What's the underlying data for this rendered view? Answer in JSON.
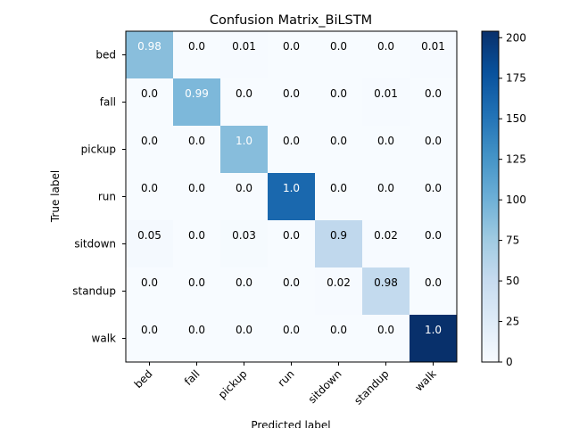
{
  "chart_data": {
    "type": "heatmap",
    "title": "Confusion Matrix_BiLSTM",
    "xlabel": "Predicted label",
    "ylabel": "True label",
    "x_categories": [
      "bed",
      "fall",
      "pickup",
      "run",
      "sitdown",
      "standup",
      "walk"
    ],
    "y_categories": [
      "bed",
      "fall",
      "pickup",
      "run",
      "sitdown",
      "standup",
      "walk"
    ],
    "cell_labels": [
      [
        "0.98",
        "0.0",
        "0.01",
        "0.0",
        "0.0",
        "0.0",
        "0.01"
      ],
      [
        "0.0",
        "0.99",
        "0.0",
        "0.0",
        "0.0",
        "0.01",
        "0.0"
      ],
      [
        "0.0",
        "0.0",
        "1.0",
        "0.0",
        "0.0",
        "0.0",
        "0.0"
      ],
      [
        "0.0",
        "0.0",
        "0.0",
        "1.0",
        "0.0",
        "0.0",
        "0.0"
      ],
      [
        "0.05",
        "0.0",
        "0.03",
        "0.0",
        "0.9",
        "0.02",
        "0.0"
      ],
      [
        "0.0",
        "0.0",
        "0.0",
        "0.0",
        "0.02",
        "0.98",
        "0.0"
      ],
      [
        "0.0",
        "0.0",
        "0.0",
        "0.0",
        "0.0",
        "0.0",
        "1.0"
      ]
    ],
    "counts": [
      [
        87,
        0,
        1,
        0,
        0,
        0,
        1
      ],
      [
        0,
        93,
        0,
        0,
        0,
        1,
        0
      ],
      [
        0,
        0,
        88,
        0,
        0,
        0,
        0
      ],
      [
        0,
        0,
        0,
        160,
        0,
        0,
        0
      ],
      [
        3,
        0,
        2,
        0,
        55,
        1,
        0
      ],
      [
        0,
        0,
        0,
        0,
        1,
        53,
        0
      ],
      [
        0,
        0,
        0,
        0,
        0,
        0,
        204
      ]
    ],
    "colorbar": {
      "colormap": "Blues",
      "range": [
        0,
        204
      ],
      "ticks": [
        0,
        25,
        50,
        75,
        100,
        125,
        150,
        175,
        200
      ],
      "tick_labels": [
        "0",
        "25",
        "50",
        "75",
        "100",
        "125",
        "150",
        "175",
        "200"
      ]
    }
  }
}
